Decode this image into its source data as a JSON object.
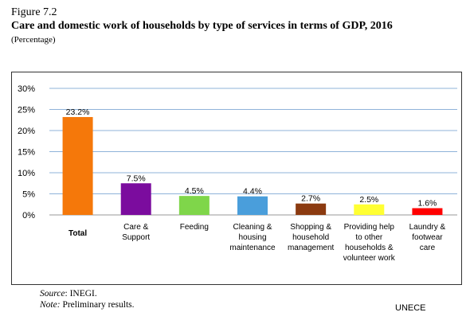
{
  "figure_number": "Figure 7.2",
  "footer": {
    "source_label": "Source",
    "source_text": ": INEGI.",
    "note_label": "Note:",
    "note_text": " Preliminary results.",
    "organization": "UNECE"
  },
  "chart_data": {
    "type": "bar",
    "title": "Care and domestic work of households by type of services in terms of GDP, 2016",
    "subtitle": "(Percentage)",
    "categories": [
      "Total",
      "Care &\nSupport",
      "Feeding",
      "Cleaning &\nhousing\nmaintenance",
      "Shopping &\nhousehold\nmanagement",
      "Providing help\nto other\nhouseholds &\nvolunteer work",
      "Laundry &\nfootwear\ncare"
    ],
    "values": [
      23.2,
      7.5,
      4.5,
      4.4,
      2.7,
      2.5,
      1.6
    ],
    "data_labels": [
      "23.2%",
      "7.5%",
      "4.5%",
      "4.4%",
      "2.7%",
      "2.5%",
      "1.6%"
    ],
    "colors": [
      "#F5780A",
      "#7B0C9E",
      "#7FD64A",
      "#4A9EDB",
      "#8B3A10",
      "#FFFF33",
      "#FF0000"
    ],
    "ylim": [
      0,
      30
    ],
    "yticks": [
      0,
      5,
      10,
      15,
      20,
      25,
      30
    ],
    "ytick_labels": [
      "0%",
      "5%",
      "10%",
      "15%",
      "20%",
      "25%",
      "30%"
    ],
    "grid": true,
    "legend": "none"
  }
}
